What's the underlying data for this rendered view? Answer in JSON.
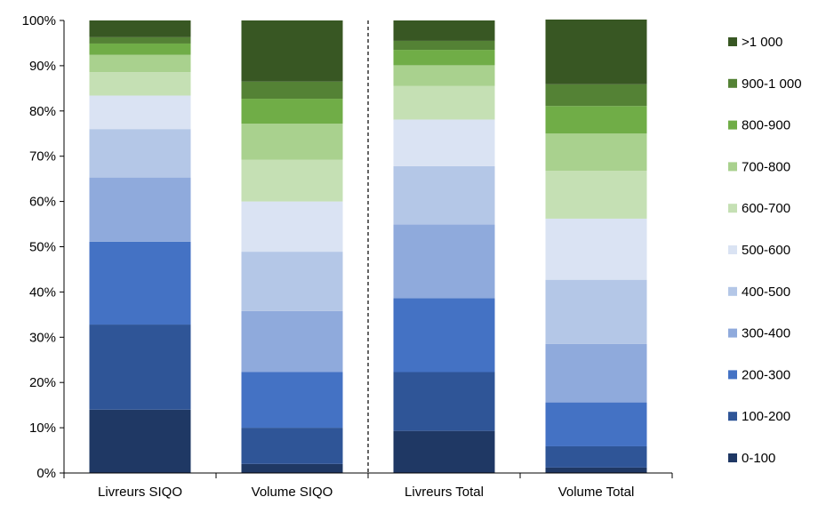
{
  "chart_data": {
    "type": "bar",
    "stacked": true,
    "percent": true,
    "categories": [
      "Livreurs SIQO",
      "Volume SIQO",
      "Livreurs Total",
      "Volume Total"
    ],
    "ylim": [
      0,
      100
    ],
    "ytick_labels": [
      "0%",
      "10%",
      "20%",
      "30%",
      "40%",
      "50%",
      "60%",
      "70%",
      "80%",
      "90%",
      "100%"
    ],
    "grid": false,
    "legend_position": "right",
    "separator_between": [
      "Volume SIQO",
      "Livreurs Total"
    ],
    "series": [
      {
        "name": "0-100",
        "color": "#1F3864",
        "values": [
          14,
          2,
          9.3,
          1.2
        ]
      },
      {
        "name": "100-200",
        "color": "#2F5597",
        "values": [
          18.8,
          8,
          13,
          4.7
        ]
      },
      {
        "name": "200-300",
        "color": "#4472C4",
        "values": [
          18.3,
          12.3,
          16.3,
          9.7
        ]
      },
      {
        "name": "300-400",
        "color": "#8FAADC",
        "values": [
          14.2,
          13.5,
          16.3,
          12.9
        ]
      },
      {
        "name": "400-500",
        "color": "#B4C7E7",
        "values": [
          10.7,
          13.1,
          12.9,
          14.2
        ]
      },
      {
        "name": "500-600",
        "color": "#DAE3F3",
        "values": [
          7.4,
          11.1,
          10.3,
          13.5
        ]
      },
      {
        "name": "600-700",
        "color": "#C5E0B4",
        "values": [
          5.2,
          9.2,
          7.4,
          10.6
        ]
      },
      {
        "name": "700-800",
        "color": "#A9D18E",
        "values": [
          3.8,
          8,
          4.6,
          8.2
        ]
      },
      {
        "name": "800-900",
        "color": "#70AD47",
        "values": [
          2.5,
          5.5,
          3.4,
          6.1
        ]
      },
      {
        "name": "900-1 000",
        "color": "#548235",
        "values": [
          1.4,
          3.8,
          2,
          4.8
        ]
      },
      {
        "name": ">1 000",
        "color": "#385723",
        "values": [
          3.7,
          13.5,
          4.5,
          14.3
        ]
      }
    ]
  }
}
